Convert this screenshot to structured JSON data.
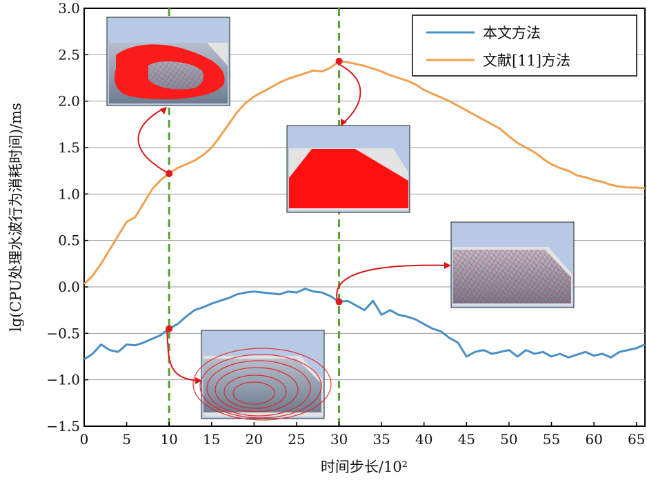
{
  "chart_data": {
    "type": "line",
    "xlabel": "时间步长/10²",
    "ylabel": "lg(CPU处理水波行为消耗时间)/ms",
    "xlim": [
      0,
      66
    ],
    "ylim": [
      -1.5,
      3.0
    ],
    "xticks": [
      "0",
      "5",
      "10",
      "15",
      "20",
      "25",
      "30",
      "35",
      "40",
      "45",
      "50",
      "55",
      "60",
      "65"
    ],
    "yticks": [
      "-1.5",
      "-1.0",
      "-0.5",
      "0.0",
      "0.5",
      "1.0",
      "1.5",
      "2.0",
      "2.5",
      "3.0"
    ],
    "grid": "horizontal",
    "legend_position": "top-right",
    "vlines": [
      10,
      30
    ],
    "series": [
      {
        "name": "本文方法",
        "color": "#4a8fc4",
        "x": [
          0,
          1,
          2,
          3,
          4,
          5,
          6,
          7,
          8,
          9,
          10,
          11,
          12,
          13,
          14,
          15,
          16,
          17,
          18,
          19,
          20,
          21,
          22,
          23,
          24,
          25,
          26,
          27,
          28,
          29,
          30,
          31,
          32,
          33,
          34,
          35,
          36,
          37,
          38,
          39,
          40,
          41,
          42,
          43,
          44,
          45,
          46,
          47,
          48,
          49,
          50,
          51,
          52,
          53,
          54,
          55,
          56,
          57,
          58,
          59,
          60,
          61,
          62,
          63,
          64,
          65,
          66
        ],
        "values": [
          -0.78,
          -0.72,
          -0.62,
          -0.68,
          -0.7,
          -0.62,
          -0.63,
          -0.6,
          -0.56,
          -0.52,
          -0.45,
          -0.4,
          -0.32,
          -0.25,
          -0.22,
          -0.18,
          -0.15,
          -0.12,
          -0.08,
          -0.06,
          -0.05,
          -0.06,
          -0.07,
          -0.08,
          -0.05,
          -0.06,
          -0.02,
          -0.05,
          -0.06,
          -0.1,
          -0.16,
          -0.15,
          -0.2,
          -0.25,
          -0.15,
          -0.3,
          -0.25,
          -0.3,
          -0.32,
          -0.35,
          -0.4,
          -0.45,
          -0.48,
          -0.55,
          -0.6,
          -0.75,
          -0.7,
          -0.68,
          -0.72,
          -0.7,
          -0.68,
          -0.75,
          -0.68,
          -0.72,
          -0.7,
          -0.75,
          -0.72,
          -0.76,
          -0.73,
          -0.7,
          -0.74,
          -0.72,
          -0.76,
          -0.7,
          -0.68,
          -0.66,
          -0.62
        ]
      },
      {
        "name": "文献[11]方法",
        "color": "#f0a050",
        "x": [
          0,
          1,
          2,
          3,
          4,
          5,
          6,
          7,
          8,
          9,
          10,
          11,
          12,
          13,
          14,
          15,
          16,
          17,
          18,
          19,
          20,
          21,
          22,
          23,
          24,
          25,
          26,
          27,
          28,
          29,
          30,
          31,
          32,
          33,
          34,
          35,
          36,
          37,
          38,
          39,
          40,
          41,
          42,
          43,
          44,
          45,
          46,
          47,
          48,
          49,
          50,
          51,
          52,
          53,
          54,
          55,
          56,
          57,
          58,
          59,
          60,
          61,
          62,
          63,
          64,
          65,
          66
        ],
        "values": [
          0.03,
          0.12,
          0.25,
          0.4,
          0.55,
          0.7,
          0.75,
          0.9,
          1.05,
          1.15,
          1.22,
          1.28,
          1.32,
          1.36,
          1.42,
          1.5,
          1.62,
          1.75,
          1.88,
          1.98,
          2.05,
          2.1,
          2.15,
          2.2,
          2.24,
          2.27,
          2.3,
          2.33,
          2.32,
          2.36,
          2.43,
          2.42,
          2.4,
          2.38,
          2.35,
          2.32,
          2.28,
          2.25,
          2.22,
          2.18,
          2.12,
          2.08,
          2.04,
          2.0,
          1.95,
          1.9,
          1.85,
          1.8,
          1.75,
          1.7,
          1.62,
          1.55,
          1.5,
          1.45,
          1.38,
          1.32,
          1.28,
          1.25,
          1.2,
          1.18,
          1.15,
          1.13,
          1.1,
          1.08,
          1.07,
          1.07,
          1.06
        ]
      }
    ],
    "markers": [
      {
        "series": 0,
        "x": 10,
        "y": -0.45,
        "color": "#e0191f"
      },
      {
        "series": 0,
        "x": 30,
        "y": -0.16,
        "color": "#e0191f"
      },
      {
        "series": 1,
        "x": 10,
        "y": 1.22,
        "color": "#e0191f"
      },
      {
        "series": 1,
        "x": 30,
        "y": 2.43,
        "color": "#e0191f"
      }
    ],
    "insets": [
      {
        "name": "inset-simulation-1",
        "description_icon": "water-surface-render-icon"
      },
      {
        "name": "inset-simulation-2",
        "description_icon": "water-surface-render-icon"
      },
      {
        "name": "inset-simulation-3",
        "description_icon": "water-surface-render-icon"
      },
      {
        "name": "inset-simulation-4",
        "description_icon": "water-surface-render-icon"
      }
    ]
  }
}
